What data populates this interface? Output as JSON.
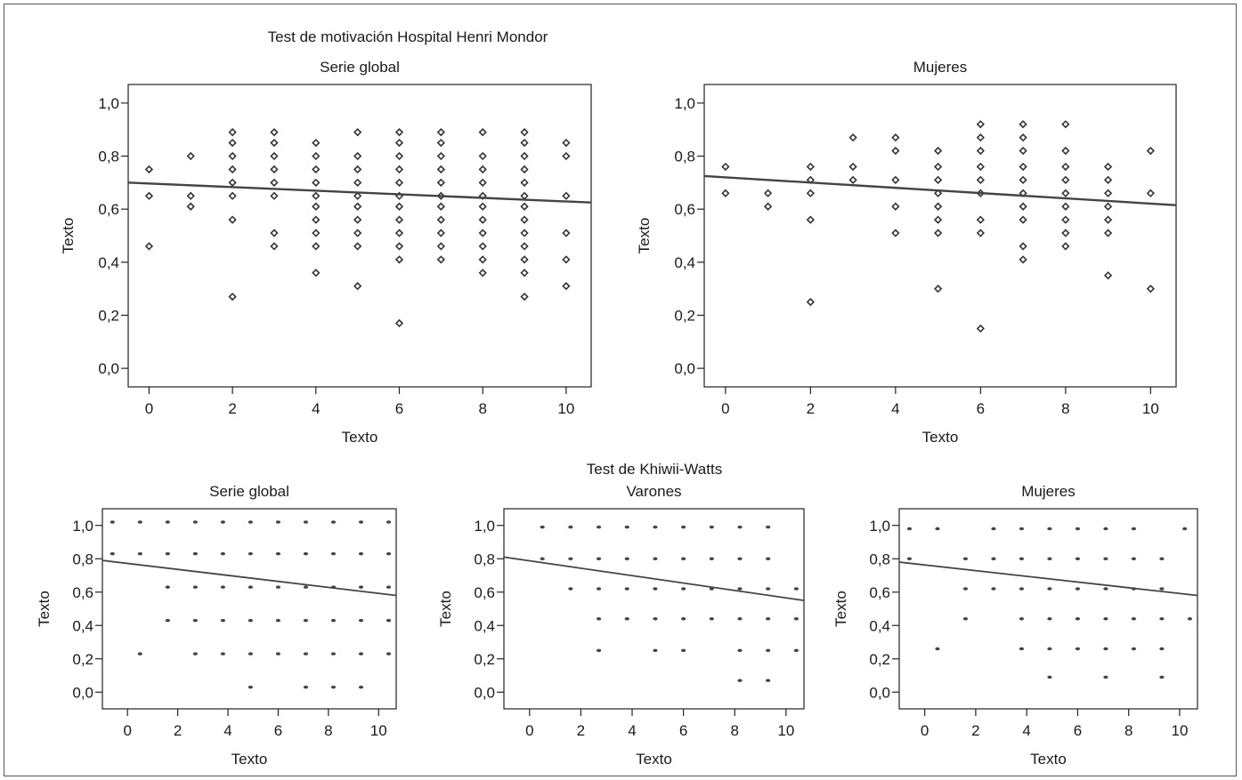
{
  "figure": {
    "top_title": "Test de motivación Hospital Henri Mondor",
    "bottom_title": "Test de Khiwii-Watts"
  },
  "chart_data": [
    {
      "type": "scatter",
      "title": "Serie global",
      "xlabel": "Texto",
      "ylabel": "Texto",
      "xlim": [
        -0.5,
        10.6
      ],
      "ylim": [
        -0.07,
        1.07
      ],
      "xticks": [
        "0",
        "2",
        "4",
        "6",
        "8",
        "10"
      ],
      "yticks": [
        "0,0",
        "0,2",
        "0,4",
        "0,6",
        "0,8",
        "1,0"
      ],
      "fit_line": {
        "x": [
          -0.5,
          10.6
        ],
        "y": [
          0.7,
          0.625
        ]
      },
      "points": [
        [
          0,
          0.75
        ],
        [
          0,
          0.65
        ],
        [
          0,
          0.46
        ],
        [
          1,
          0.8
        ],
        [
          1,
          0.65
        ],
        [
          1,
          0.61
        ],
        [
          2,
          0.89
        ],
        [
          2,
          0.85
        ],
        [
          2,
          0.8
        ],
        [
          2,
          0.75
        ],
        [
          2,
          0.7
        ],
        [
          2,
          0.65
        ],
        [
          2,
          0.56
        ],
        [
          2,
          0.27
        ],
        [
          3,
          0.89
        ],
        [
          3,
          0.85
        ],
        [
          3,
          0.8
        ],
        [
          3,
          0.75
        ],
        [
          3,
          0.7
        ],
        [
          3,
          0.65
        ],
        [
          3,
          0.51
        ],
        [
          3,
          0.46
        ],
        [
          4,
          0.85
        ],
        [
          4,
          0.8
        ],
        [
          4,
          0.75
        ],
        [
          4,
          0.7
        ],
        [
          4,
          0.65
        ],
        [
          4,
          0.61
        ],
        [
          4,
          0.56
        ],
        [
          4,
          0.51
        ],
        [
          4,
          0.46
        ],
        [
          4,
          0.36
        ],
        [
          5,
          0.89
        ],
        [
          5,
          0.8
        ],
        [
          5,
          0.75
        ],
        [
          5,
          0.7
        ],
        [
          5,
          0.65
        ],
        [
          5,
          0.61
        ],
        [
          5,
          0.56
        ],
        [
          5,
          0.51
        ],
        [
          5,
          0.46
        ],
        [
          5,
          0.31
        ],
        [
          6,
          0.89
        ],
        [
          6,
          0.85
        ],
        [
          6,
          0.8
        ],
        [
          6,
          0.75
        ],
        [
          6,
          0.7
        ],
        [
          6,
          0.65
        ],
        [
          6,
          0.61
        ],
        [
          6,
          0.56
        ],
        [
          6,
          0.51
        ],
        [
          6,
          0.46
        ],
        [
          6,
          0.41
        ],
        [
          6,
          0.17
        ],
        [
          7,
          0.89
        ],
        [
          7,
          0.85
        ],
        [
          7,
          0.8
        ],
        [
          7,
          0.75
        ],
        [
          7,
          0.7
        ],
        [
          7,
          0.65
        ],
        [
          7,
          0.61
        ],
        [
          7,
          0.56
        ],
        [
          7,
          0.51
        ],
        [
          7,
          0.46
        ],
        [
          7,
          0.41
        ],
        [
          8,
          0.89
        ],
        [
          8,
          0.8
        ],
        [
          8,
          0.75
        ],
        [
          8,
          0.7
        ],
        [
          8,
          0.65
        ],
        [
          8,
          0.61
        ],
        [
          8,
          0.56
        ],
        [
          8,
          0.51
        ],
        [
          8,
          0.46
        ],
        [
          8,
          0.41
        ],
        [
          8,
          0.36
        ],
        [
          9,
          0.89
        ],
        [
          9,
          0.85
        ],
        [
          9,
          0.8
        ],
        [
          9,
          0.75
        ],
        [
          9,
          0.7
        ],
        [
          9,
          0.65
        ],
        [
          9,
          0.61
        ],
        [
          9,
          0.56
        ],
        [
          9,
          0.51
        ],
        [
          9,
          0.46
        ],
        [
          9,
          0.41
        ],
        [
          9,
          0.36
        ],
        [
          9,
          0.27
        ],
        [
          10,
          0.85
        ],
        [
          10,
          0.8
        ],
        [
          10,
          0.65
        ],
        [
          10,
          0.51
        ],
        [
          10,
          0.41
        ],
        [
          10,
          0.31
        ]
      ]
    },
    {
      "type": "scatter",
      "title": "Mujeres",
      "xlabel": "Texto",
      "ylabel": "Texto",
      "xlim": [
        -0.5,
        10.6
      ],
      "ylim": [
        -0.07,
        1.07
      ],
      "xticks": [
        "0",
        "2",
        "4",
        "6",
        "8",
        "10"
      ],
      "yticks": [
        "0,0",
        "0,2",
        "0,4",
        "0,6",
        "0,8",
        "1,0"
      ],
      "fit_line": {
        "x": [
          -0.5,
          10.6
        ],
        "y": [
          0.725,
          0.615
        ]
      },
      "points": [
        [
          0,
          0.76
        ],
        [
          0,
          0.66
        ],
        [
          1,
          0.66
        ],
        [
          1,
          0.61
        ],
        [
          2,
          0.76
        ],
        [
          2,
          0.71
        ],
        [
          2,
          0.66
        ],
        [
          2,
          0.56
        ],
        [
          2,
          0.25
        ],
        [
          3,
          0.87
        ],
        [
          3,
          0.76
        ],
        [
          3,
          0.71
        ],
        [
          4,
          0.87
        ],
        [
          4,
          0.82
        ],
        [
          4,
          0.71
        ],
        [
          4,
          0.61
        ],
        [
          4,
          0.51
        ],
        [
          5,
          0.82
        ],
        [
          5,
          0.76
        ],
        [
          5,
          0.71
        ],
        [
          5,
          0.66
        ],
        [
          5,
          0.61
        ],
        [
          5,
          0.56
        ],
        [
          5,
          0.51
        ],
        [
          5,
          0.3
        ],
        [
          6,
          0.92
        ],
        [
          6,
          0.87
        ],
        [
          6,
          0.82
        ],
        [
          6,
          0.76
        ],
        [
          6,
          0.71
        ],
        [
          6,
          0.66
        ],
        [
          6,
          0.56
        ],
        [
          6,
          0.51
        ],
        [
          6,
          0.15
        ],
        [
          7,
          0.92
        ],
        [
          7,
          0.87
        ],
        [
          7,
          0.82
        ],
        [
          7,
          0.76
        ],
        [
          7,
          0.71
        ],
        [
          7,
          0.66
        ],
        [
          7,
          0.61
        ],
        [
          7,
          0.56
        ],
        [
          7,
          0.46
        ],
        [
          7,
          0.41
        ],
        [
          8,
          0.92
        ],
        [
          8,
          0.82
        ],
        [
          8,
          0.76
        ],
        [
          8,
          0.71
        ],
        [
          8,
          0.66
        ],
        [
          8,
          0.61
        ],
        [
          8,
          0.56
        ],
        [
          8,
          0.51
        ],
        [
          8,
          0.46
        ],
        [
          9,
          0.76
        ],
        [
          9,
          0.71
        ],
        [
          9,
          0.66
        ],
        [
          9,
          0.61
        ],
        [
          9,
          0.56
        ],
        [
          9,
          0.51
        ],
        [
          9,
          0.35
        ],
        [
          10,
          0.82
        ],
        [
          10,
          0.66
        ],
        [
          10,
          0.3
        ]
      ]
    },
    {
      "type": "scatter",
      "title": "Serie global",
      "xlabel": "Texto",
      "ylabel": "Texto",
      "xlim": [
        -1.0,
        10.7
      ],
      "ylim": [
        -0.1,
        1.1
      ],
      "xticks": [
        "0",
        "2",
        "4",
        "6",
        "8",
        "10"
      ],
      "yticks": [
        "0,0",
        "0,2",
        "0,4",
        "0,6",
        "0,8",
        "1,0"
      ],
      "fit_line": {
        "x": [
          -1.0,
          10.7
        ],
        "y": [
          0.79,
          0.58
        ]
      },
      "points": [
        [
          -0.6,
          1.02
        ],
        [
          0.5,
          1.02
        ],
        [
          1.6,
          1.02
        ],
        [
          2.7,
          1.02
        ],
        [
          3.8,
          1.02
        ],
        [
          4.9,
          1.02
        ],
        [
          6.0,
          1.02
        ],
        [
          7.1,
          1.02
        ],
        [
          8.2,
          1.02
        ],
        [
          9.3,
          1.02
        ],
        [
          10.4,
          1.02
        ],
        [
          -0.6,
          0.83
        ],
        [
          0.5,
          0.83
        ],
        [
          1.6,
          0.83
        ],
        [
          2.7,
          0.83
        ],
        [
          3.8,
          0.83
        ],
        [
          4.9,
          0.83
        ],
        [
          6.0,
          0.83
        ],
        [
          7.1,
          0.83
        ],
        [
          8.2,
          0.83
        ],
        [
          9.3,
          0.83
        ],
        [
          10.4,
          0.83
        ],
        [
          1.6,
          0.63
        ],
        [
          2.7,
          0.63
        ],
        [
          3.8,
          0.63
        ],
        [
          4.9,
          0.63
        ],
        [
          6.0,
          0.63
        ],
        [
          7.1,
          0.63
        ],
        [
          8.2,
          0.63
        ],
        [
          9.3,
          0.63
        ],
        [
          10.4,
          0.63
        ],
        [
          1.6,
          0.43
        ],
        [
          2.7,
          0.43
        ],
        [
          3.8,
          0.43
        ],
        [
          4.9,
          0.43
        ],
        [
          6.0,
          0.43
        ],
        [
          7.1,
          0.43
        ],
        [
          8.2,
          0.43
        ],
        [
          9.3,
          0.43
        ],
        [
          10.4,
          0.43
        ],
        [
          0.5,
          0.23
        ],
        [
          2.7,
          0.23
        ],
        [
          3.8,
          0.23
        ],
        [
          4.9,
          0.23
        ],
        [
          6.0,
          0.23
        ],
        [
          7.1,
          0.23
        ],
        [
          8.2,
          0.23
        ],
        [
          9.3,
          0.23
        ],
        [
          10.4,
          0.23
        ],
        [
          4.9,
          0.03
        ],
        [
          7.1,
          0.03
        ],
        [
          8.2,
          0.03
        ],
        [
          9.3,
          0.03
        ]
      ]
    },
    {
      "type": "scatter",
      "title": "Varones",
      "xlabel": "Texto",
      "ylabel": "Texto",
      "xlim": [
        -1.0,
        10.7
      ],
      "ylim": [
        -0.1,
        1.1
      ],
      "xticks": [
        "0",
        "2",
        "4",
        "6",
        "8",
        "10"
      ],
      "yticks": [
        "0,0",
        "0,2",
        "0,4",
        "0,6",
        "0,8",
        "1,0"
      ],
      "fit_line": {
        "x": [
          -1.0,
          10.7
        ],
        "y": [
          0.81,
          0.55
        ]
      },
      "points": [
        [
          0.5,
          0.99
        ],
        [
          1.6,
          0.99
        ],
        [
          2.7,
          0.99
        ],
        [
          3.8,
          0.99
        ],
        [
          4.9,
          0.99
        ],
        [
          6.0,
          0.99
        ],
        [
          7.1,
          0.99
        ],
        [
          8.2,
          0.99
        ],
        [
          9.3,
          0.99
        ],
        [
          0.5,
          0.8
        ],
        [
          1.6,
          0.8
        ],
        [
          2.7,
          0.8
        ],
        [
          3.8,
          0.8
        ],
        [
          4.9,
          0.8
        ],
        [
          6.0,
          0.8
        ],
        [
          7.1,
          0.8
        ],
        [
          8.2,
          0.8
        ],
        [
          9.3,
          0.8
        ],
        [
          1.6,
          0.62
        ],
        [
          2.7,
          0.62
        ],
        [
          3.8,
          0.62
        ],
        [
          4.9,
          0.62
        ],
        [
          6.0,
          0.62
        ],
        [
          7.1,
          0.62
        ],
        [
          8.2,
          0.62
        ],
        [
          9.3,
          0.62
        ],
        [
          10.4,
          0.62
        ],
        [
          2.7,
          0.44
        ],
        [
          3.8,
          0.44
        ],
        [
          4.9,
          0.44
        ],
        [
          6.0,
          0.44
        ],
        [
          7.1,
          0.44
        ],
        [
          8.2,
          0.44
        ],
        [
          9.3,
          0.44
        ],
        [
          10.4,
          0.44
        ],
        [
          2.7,
          0.25
        ],
        [
          4.9,
          0.25
        ],
        [
          6.0,
          0.25
        ],
        [
          8.2,
          0.25
        ],
        [
          9.3,
          0.25
        ],
        [
          10.4,
          0.25
        ],
        [
          8.2,
          0.07
        ],
        [
          9.3,
          0.07
        ]
      ]
    },
    {
      "type": "scatter",
      "title": "Mujeres",
      "xlabel": "Texto",
      "ylabel": "Texto",
      "xlim": [
        -1.0,
        10.7
      ],
      "ylim": [
        -0.1,
        1.1
      ],
      "xticks": [
        "0",
        "2",
        "4",
        "6",
        "8",
        "10"
      ],
      "yticks": [
        "0,0",
        "0,2",
        "0,4",
        "0,6",
        "0,8",
        "1,0"
      ],
      "fit_line": {
        "x": [
          -1.0,
          10.7
        ],
        "y": [
          0.78,
          0.58
        ]
      },
      "points": [
        [
          -0.6,
          0.98
        ],
        [
          0.5,
          0.98
        ],
        [
          2.7,
          0.98
        ],
        [
          3.8,
          0.98
        ],
        [
          4.9,
          0.98
        ],
        [
          6.0,
          0.98
        ],
        [
          7.1,
          0.98
        ],
        [
          8.2,
          0.98
        ],
        [
          10.2,
          0.98
        ],
        [
          -0.6,
          0.8
        ],
        [
          1.6,
          0.8
        ],
        [
          2.7,
          0.8
        ],
        [
          3.8,
          0.8
        ],
        [
          4.9,
          0.8
        ],
        [
          6.0,
          0.8
        ],
        [
          7.1,
          0.8
        ],
        [
          8.2,
          0.8
        ],
        [
          9.3,
          0.8
        ],
        [
          1.6,
          0.62
        ],
        [
          2.7,
          0.62
        ],
        [
          3.8,
          0.62
        ],
        [
          4.9,
          0.62
        ],
        [
          6.0,
          0.62
        ],
        [
          7.1,
          0.62
        ],
        [
          8.2,
          0.62
        ],
        [
          9.3,
          0.62
        ],
        [
          1.6,
          0.44
        ],
        [
          3.8,
          0.44
        ],
        [
          4.9,
          0.44
        ],
        [
          6.0,
          0.44
        ],
        [
          7.1,
          0.44
        ],
        [
          8.2,
          0.44
        ],
        [
          9.3,
          0.44
        ],
        [
          10.4,
          0.44
        ],
        [
          0.5,
          0.26
        ],
        [
          3.8,
          0.26
        ],
        [
          4.9,
          0.26
        ],
        [
          6.0,
          0.26
        ],
        [
          7.1,
          0.26
        ],
        [
          8.2,
          0.26
        ],
        [
          9.3,
          0.26
        ],
        [
          4.9,
          0.09
        ],
        [
          7.1,
          0.09
        ],
        [
          9.3,
          0.09
        ]
      ]
    }
  ]
}
